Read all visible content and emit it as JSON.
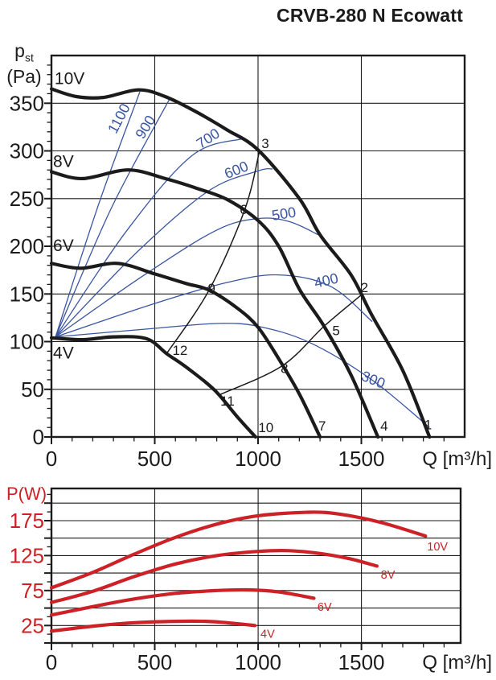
{
  "title": "CRVB-280 N Ecowatt",
  "colors": {
    "black": "#1b1b1b",
    "blue": "#3a55a0",
    "red": "#cc2127"
  },
  "chart_data": [
    {
      "type": "line",
      "name": "static pressure vs airflow",
      "ylabel": {
        "symbol": "p",
        "subscript": "st",
        "unit": "(Pa)"
      },
      "xlabel": "Q [m³/h]",
      "xlim": [
        0,
        2000
      ],
      "ylim": [
        0,
        400
      ],
      "xticks": [
        0,
        500,
        1000,
        1500
      ],
      "yticks": [
        0,
        50,
        100,
        150,
        200,
        250,
        300,
        350
      ],
      "x_minor_step": 100,
      "y_minor_step": 10,
      "grid": "major",
      "legend_position": "none",
      "fan_curves": [
        {
          "name": "10V",
          "label_pos": [
            88,
            376
          ],
          "points": [
            [
              0,
              365
            ],
            [
              120,
              357
            ],
            [
              250,
              356
            ],
            [
              420,
              364
            ],
            [
              550,
              357
            ],
            [
              700,
              341
            ],
            [
              850,
              322
            ],
            [
              1000,
              301
            ],
            [
              1200,
              250
            ],
            [
              1300,
              212
            ],
            [
              1450,
              170
            ],
            [
              1550,
              128
            ],
            [
              1700,
              70
            ],
            [
              1830,
              0
            ]
          ]
        },
        {
          "name": "8V",
          "label_pos": [
            58,
            289
          ],
          "points": [
            [
              0,
              278
            ],
            [
              150,
              271
            ],
            [
              370,
              280
            ],
            [
              550,
              271
            ],
            [
              700,
              261
            ],
            [
              850,
              249
            ],
            [
              1000,
              227
            ],
            [
              1100,
              200
            ],
            [
              1200,
              155
            ],
            [
              1320,
              116
            ],
            [
              1450,
              65
            ],
            [
              1580,
              0
            ]
          ]
        },
        {
          "name": "6V",
          "label_pos": [
            58,
            201
          ],
          "points": [
            [
              0,
              182
            ],
            [
              140,
              177
            ],
            [
              320,
              182
            ],
            [
              500,
              171
            ],
            [
              650,
              161
            ],
            [
              763,
              154
            ],
            [
              900,
              135
            ],
            [
              1000,
              115
            ],
            [
              1100,
              82
            ],
            [
              1200,
              45
            ],
            [
              1300,
              0
            ]
          ]
        },
        {
          "name": "4V",
          "label_pos": [
            58,
            88
          ],
          "points": [
            [
              0,
              104
            ],
            [
              150,
              102
            ],
            [
              300,
              105
            ],
            [
              460,
              103
            ],
            [
              560,
              87
            ],
            [
              660,
              72
            ],
            [
              790,
              49
            ],
            [
              900,
              21
            ],
            [
              988,
              0
            ]
          ]
        }
      ],
      "rpm_curves": [
        {
          "name": "1100",
          "label_pos": [
            327,
            334
          ],
          "label_angle": -62,
          "points": [
            [
              20,
              105
            ],
            [
              230,
              245
            ],
            [
              428,
              362
            ]
          ]
        },
        {
          "name": "900",
          "label_pos": [
            455,
            325
          ],
          "label_angle": -58,
          "points": [
            [
              20,
              105
            ],
            [
              290,
              240
            ],
            [
              576,
              356
            ]
          ]
        },
        {
          "name": "700",
          "label_pos": [
            758,
            313
          ],
          "label_angle": -33,
          "points": [
            [
              20,
              105
            ],
            [
              360,
              215
            ],
            [
              680,
              295
            ],
            [
              930,
              313
            ]
          ]
        },
        {
          "name": "600",
          "label_pos": [
            895,
            280
          ],
          "label_angle": -22,
          "points": [
            [
              20,
              105
            ],
            [
              420,
              195
            ],
            [
              760,
              258
            ],
            [
              1000,
              279
            ],
            [
              1070,
              281
            ]
          ]
        },
        {
          "name": "500",
          "label_pos": [
            1125,
            234
          ],
          "label_angle": -9,
          "points": [
            [
              20,
              105
            ],
            [
              450,
              170
            ],
            [
              800,
              217
            ],
            [
              1000,
              229
            ],
            [
              1150,
              226
            ],
            [
              1292,
              212
            ]
          ]
        },
        {
          "name": "400",
          "label_pos": [
            1330,
            164
          ],
          "label_angle": -13,
          "points": [
            [
              20,
              105
            ],
            [
              500,
              140
            ],
            [
              850,
              162
            ],
            [
              1100,
              170
            ],
            [
              1350,
              158
            ],
            [
              1553,
              121
            ]
          ]
        },
        {
          "name": "300",
          "label_pos": [
            1558,
            60
          ],
          "label_angle": 22,
          "points": [
            [
              20,
              105
            ],
            [
              450,
              113
            ],
            [
              800,
              119
            ],
            [
              1000,
              116
            ],
            [
              1250,
              99
            ],
            [
              1550,
              60
            ],
            [
              1830,
              10
            ]
          ]
        }
      ],
      "duty_lines": [
        {
          "name": "duty-line-3-6-9-12",
          "points": [
            [
              556,
              87
            ],
            [
              763,
              154
            ],
            [
              935,
              238
            ],
            [
              1008,
              301
            ]
          ]
        },
        {
          "name": "duty-line-2-5-8-11",
          "points": [
            [
              810,
              44
            ],
            [
              1113,
              74
            ],
            [
              1319,
              116
            ],
            [
              1500,
              149
            ]
          ]
        }
      ],
      "operating_points": [
        {
          "id": "1",
          "label_pos": [
            1823,
            13
          ]
        },
        {
          "id": "2",
          "label_pos": [
            1515,
            157
          ]
        },
        {
          "id": "3",
          "label_pos": [
            1035,
            308
          ]
        },
        {
          "id": "4",
          "label_pos": [
            1610,
            12
          ]
        },
        {
          "id": "5",
          "label_pos": [
            1378,
            112
          ]
        },
        {
          "id": "6",
          "label_pos": [
            930,
            239
          ]
        },
        {
          "id": "7",
          "label_pos": [
            1310,
            12
          ]
        },
        {
          "id": "8",
          "label_pos": [
            1128,
            72
          ]
        },
        {
          "id": "9",
          "label_pos": [
            775,
            156
          ]
        },
        {
          "id": "10",
          "label_pos": [
            1038,
            10
          ]
        },
        {
          "id": "11",
          "label_pos": [
            852,
            38
          ]
        },
        {
          "id": "12",
          "label_pos": [
            622,
            91
          ]
        }
      ]
    },
    {
      "type": "line",
      "name": "power input vs airflow",
      "ylabel": "P(W)",
      "xlabel": "Q [m³/h]",
      "xlim": [
        0,
        1980
      ],
      "ylim": [
        0,
        221
      ],
      "xticks": [
        0,
        500,
        1000,
        1500
      ],
      "yticks": [
        25,
        75,
        125,
        175
      ],
      "y_grid_step": 25,
      "x_minor_step": 100,
      "y_minor_step": 12.5,
      "grid": "major",
      "legend_position": "none",
      "series": [
        {
          "name": "10V",
          "label_pos": [
            1868,
            138
          ],
          "points": [
            [
              0,
              79
            ],
            [
              200,
              101
            ],
            [
              400,
              127
            ],
            [
              600,
              151
            ],
            [
              800,
              170
            ],
            [
              1000,
              182
            ],
            [
              1250,
              187
            ],
            [
              1400,
              184
            ],
            [
              1600,
              172
            ],
            [
              1810,
              153
            ]
          ]
        },
        {
          "name": "8V",
          "label_pos": [
            1628,
            98
          ],
          "points": [
            [
              0,
              58
            ],
            [
              200,
              74
            ],
            [
              400,
              95
            ],
            [
              600,
              113
            ],
            [
              800,
              125
            ],
            [
              1000,
              131
            ],
            [
              1150,
              132
            ],
            [
              1300,
              128
            ],
            [
              1450,
              120
            ],
            [
              1575,
              110
            ]
          ]
        },
        {
          "name": "6V",
          "label_pos": [
            1322,
            52
          ],
          "points": [
            [
              0,
              40
            ],
            [
              200,
              52
            ],
            [
              400,
              63
            ],
            [
              600,
              71
            ],
            [
              800,
              75
            ],
            [
              950,
              76
            ],
            [
              1100,
              73
            ],
            [
              1270,
              64
            ]
          ]
        },
        {
          "name": "4V",
          "label_pos": [
            1046,
            13
          ],
          "points": [
            [
              0,
              17
            ],
            [
              200,
              24
            ],
            [
              400,
              29
            ],
            [
              600,
              31
            ],
            [
              750,
              31
            ],
            [
              850,
              29
            ],
            [
              985,
              25
            ]
          ]
        }
      ]
    }
  ]
}
